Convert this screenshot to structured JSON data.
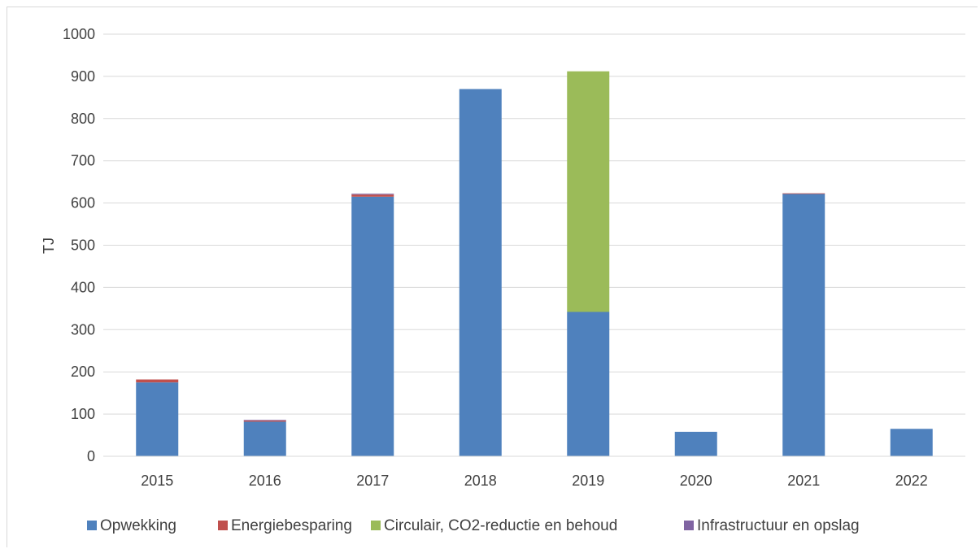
{
  "chart_data": {
    "type": "bar",
    "stacked": true,
    "title": "",
    "xlabel": "",
    "ylabel": "TJ",
    "ylim": [
      0,
      1000
    ],
    "yticks": [
      0,
      100,
      200,
      300,
      400,
      500,
      600,
      700,
      800,
      900,
      1000
    ],
    "grid": true,
    "legend_position": "bottom",
    "categories": [
      "2015",
      "2016",
      "2017",
      "2018",
      "2019",
      "2020",
      "2021",
      "2022"
    ],
    "series": [
      {
        "name": "Opwekking",
        "color": "#4f81bd",
        "values": [
          175,
          82,
          615,
          870,
          342,
          58,
          622,
          65
        ]
      },
      {
        "name": "Energiebesparing",
        "color": "#c0504d",
        "values": [
          7,
          3,
          5,
          0,
          0,
          0,
          1,
          0
        ]
      },
      {
        "name": "Circulair, CO2-reductie en behoud",
        "color": "#9bbb59",
        "values": [
          0,
          0,
          0,
          0,
          570,
          0,
          0,
          0
        ]
      },
      {
        "name": "Infrastructuur en opslag",
        "color": "#8064a2",
        "values": [
          0,
          1,
          2,
          0,
          0,
          0,
          0,
          0
        ]
      }
    ]
  }
}
